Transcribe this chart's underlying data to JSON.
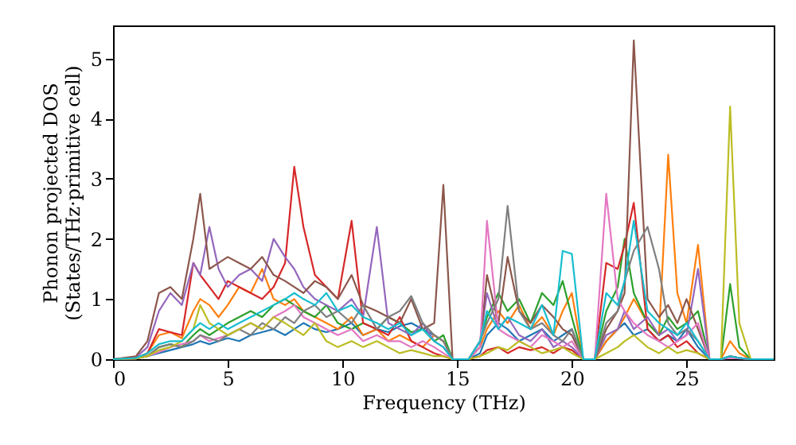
{
  "chart_data": {
    "type": "line",
    "xlabel": "Frequency (THz)",
    "ylabel": "Phonon projected DOS\n(States/THz·primitive cell)",
    "x": [
      0,
      1,
      1.5,
      2,
      2.5,
      3,
      3.5,
      3.8,
      4.2,
      4.6,
      5,
      5.5,
      6,
      6.5,
      7,
      7.5,
      7.9,
      8.3,
      8.8,
      9.3,
      9.8,
      10.4,
      10.9,
      11.5,
      12,
      12.5,
      13,
      13.5,
      14,
      14.4,
      14.8,
      15.5,
      16,
      16.3,
      16.8,
      17.2,
      17.7,
      18.2,
      18.7,
      19.2,
      19.6,
      20,
      20.5,
      21,
      21.5,
      22,
      22.3,
      22.7,
      23.3,
      23.8,
      24.2,
      24.6,
      25,
      25.5,
      26,
      26.5,
      26.9,
      27.3,
      27.8,
      28.8
    ],
    "series": [
      {
        "color": "#1f77b4",
        "values": [
          0,
          0.02,
          0.05,
          0.1,
          0.15,
          0.2,
          0.25,
          0.3,
          0.25,
          0.3,
          0.35,
          0.3,
          0.4,
          0.45,
          0.5,
          0.4,
          0.5,
          0.6,
          0.5,
          0.45,
          0.5,
          0.6,
          0.4,
          0.5,
          0.45,
          0.55,
          0.6,
          0.5,
          0.4,
          0.3,
          0,
          0,
          0.1,
          0.4,
          0.6,
          0.5,
          0.3,
          0.4,
          0.5,
          0.3,
          0.4,
          0.5,
          0,
          0,
          0.3,
          0.5,
          0.6,
          0.4,
          0.5,
          0.3,
          0.4,
          0.3,
          0.5,
          0.2,
          0,
          0,
          0.05,
          0.02,
          0,
          0
        ]
      },
      {
        "color": "#ff7f0e",
        "values": [
          0,
          0.02,
          0.1,
          0.4,
          0.45,
          0.35,
          0.8,
          1.0,
          0.9,
          0.7,
          0.9,
          1.2,
          1.1,
          1.5,
          1.0,
          0.9,
          1.0,
          0.8,
          0.7,
          0.6,
          0.5,
          0.7,
          0.4,
          0.5,
          0.3,
          0.4,
          0.3,
          0.2,
          0.4,
          0.3,
          0,
          0,
          0.2,
          0.5,
          0.8,
          0.6,
          0.9,
          0.5,
          0.7,
          0.4,
          0.8,
          1.1,
          0,
          0,
          0.3,
          0.5,
          0.7,
          1.0,
          0.6,
          0.4,
          3.4,
          1.1,
          0.6,
          1.9,
          0,
          0,
          0.3,
          0.1,
          0,
          0
        ]
      },
      {
        "color": "#2ca02c",
        "values": [
          0,
          0.01,
          0.05,
          0.2,
          0.25,
          0.2,
          0.4,
          0.5,
          0.4,
          0.5,
          0.6,
          0.7,
          0.8,
          0.7,
          0.9,
          1.0,
          0.9,
          0.8,
          0.7,
          0.9,
          0.6,
          0.5,
          0.6,
          0.5,
          0.7,
          0.6,
          0.45,
          0.5,
          0.3,
          0.4,
          0,
          0,
          0.3,
          0.7,
          1.1,
          0.8,
          1.0,
          0.6,
          1.1,
          0.9,
          1.3,
          0.7,
          0,
          0,
          0.8,
          1.2,
          2.0,
          1.1,
          0.6,
          0.4,
          0.7,
          0.5,
          0.6,
          0.8,
          0,
          0,
          1.25,
          0.2,
          0,
          0
        ]
      },
      {
        "color": "#d62728",
        "values": [
          0,
          0.01,
          0.1,
          0.5,
          0.45,
          0.4,
          1.6,
          1.4,
          1.2,
          1.0,
          1.3,
          1.2,
          1.1,
          1.0,
          1.2,
          1.6,
          3.2,
          2.2,
          1.4,
          1.2,
          1.0,
          2.3,
          0.6,
          0.5,
          0.4,
          0.7,
          0.3,
          0.2,
          0.1,
          0.05,
          0,
          0,
          0.05,
          0.15,
          0.2,
          0.1,
          0.2,
          0.15,
          0.2,
          0.1,
          0.2,
          0.15,
          0,
          0,
          1.6,
          1.5,
          1.9,
          2.6,
          0.5,
          0.3,
          0.4,
          0.2,
          0.3,
          0.1,
          0,
          null,
          null,
          null,
          null,
          null
        ]
      },
      {
        "color": "#9467bd",
        "values": [
          0,
          0.03,
          0.2,
          0.8,
          1.1,
          0.9,
          1.6,
          1.4,
          2.2,
          1.5,
          1.2,
          1.4,
          1.5,
          1.3,
          2.0,
          1.7,
          1.5,
          1.2,
          1.0,
          0.9,
          0.8,
          1.0,
          0.7,
          2.2,
          0.6,
          0.5,
          0.4,
          0.6,
          0.3,
          0.2,
          0,
          0,
          0.3,
          1.1,
          0.5,
          0.7,
          0.4,
          0.3,
          0.5,
          0.2,
          0.3,
          0.2,
          0,
          0,
          0.4,
          0.5,
          0.8,
          0.5,
          0.7,
          0.4,
          0.5,
          0.3,
          0.4,
          1.5,
          0,
          0,
          0.05,
          0.02,
          0,
          0
        ]
      },
      {
        "color": "#8c564b",
        "values": [
          0,
          0.05,
          0.3,
          1.1,
          1.2,
          1.0,
          2.0,
          2.75,
          1.5,
          1.6,
          1.7,
          1.6,
          1.5,
          1.7,
          1.4,
          1.3,
          1.2,
          1.1,
          1.3,
          1.2,
          1.0,
          1.4,
          0.9,
          0.8,
          0.7,
          0.6,
          1.0,
          0.5,
          0.6,
          2.9,
          0,
          0,
          0.2,
          1.4,
          0.6,
          1.7,
          0.8,
          0.6,
          0.9,
          0.7,
          0.5,
          0.4,
          0,
          0,
          0.5,
          0.8,
          1.1,
          5.3,
          1.0,
          0.7,
          0.9,
          0.6,
          1.0,
          0.5,
          0,
          0,
          0.05,
          0.02,
          0,
          0
        ]
      },
      {
        "color": "#e377c2",
        "values": [
          0,
          0.01,
          0.05,
          0.12,
          0.2,
          0.25,
          0.3,
          0.4,
          0.3,
          0.35,
          0.4,
          0.5,
          0.6,
          0.5,
          0.7,
          0.8,
          0.9,
          0.7,
          0.6,
          0.5,
          0.4,
          0.5,
          0.3,
          0.4,
          0.3,
          0.3,
          0.2,
          0.3,
          0.2,
          0.1,
          0,
          0,
          0.2,
          2.3,
          0.5,
          0.4,
          0.3,
          0.2,
          0.4,
          0.3,
          0.2,
          0.3,
          0,
          0,
          2.75,
          1.0,
          0.8,
          0.6,
          0.4,
          0.3,
          0.2,
          0.3,
          0.4,
          0.6,
          0,
          0,
          0.02,
          0.01,
          0,
          0
        ]
      },
      {
        "color": "#7f7f7f",
        "values": [
          0,
          0.01,
          0.05,
          0.2,
          0.25,
          0.2,
          0.3,
          0.4,
          0.35,
          0.3,
          0.4,
          0.5,
          0.4,
          0.6,
          0.5,
          0.7,
          0.6,
          0.8,
          0.9,
          0.7,
          0.8,
          0.6,
          0.9,
          0.5,
          0.7,
          0.8,
          1.05,
          0.6,
          0.4,
          0.3,
          0,
          0,
          0.3,
          0.6,
          1.0,
          2.55,
          0.8,
          0.5,
          0.6,
          0.4,
          0.3,
          0.5,
          0,
          0,
          0.6,
          0.8,
          1.3,
          1.8,
          2.2,
          1.5,
          0.6,
          0.4,
          0.5,
          0.3,
          0,
          0,
          0.05,
          0.02,
          0,
          0
        ]
      },
      {
        "color": "#bcbd22",
        "values": [
          0,
          0.01,
          0.05,
          0.15,
          0.2,
          0.3,
          0.5,
          0.9,
          0.6,
          0.5,
          0.4,
          0.5,
          0.6,
          0.5,
          0.7,
          0.6,
          0.5,
          0.4,
          0.6,
          0.3,
          0.2,
          0.3,
          0.2,
          0.3,
          0.2,
          0.1,
          0.15,
          0.1,
          0.05,
          0.05,
          0,
          0,
          0.05,
          0.1,
          0.2,
          0.15,
          0.3,
          0.2,
          0.1,
          0.15,
          0.2,
          0.1,
          0,
          0,
          0.1,
          0.2,
          0.3,
          0.4,
          0.2,
          0.1,
          0.2,
          0.1,
          0.15,
          0.1,
          0,
          0,
          4.2,
          0.6,
          0,
          0
        ]
      },
      {
        "color": "#17becf",
        "values": [
          0,
          0.02,
          0.1,
          0.25,
          0.3,
          0.3,
          0.5,
          0.6,
          0.5,
          0.6,
          0.5,
          0.6,
          0.7,
          0.8,
          0.9,
          1.0,
          1.1,
          1.0,
          0.9,
          1.1,
          0.8,
          0.9,
          0.7,
          0.6,
          0.5,
          0.6,
          0.4,
          0.5,
          0.3,
          0.2,
          0,
          0,
          0.3,
          0.8,
          0.5,
          0.7,
          0.6,
          0.5,
          0.9,
          0.4,
          1.8,
          1.75,
          0,
          0,
          1.1,
          0.9,
          1.3,
          2.3,
          0.8,
          0.6,
          0.5,
          0.4,
          0.6,
          0.3,
          0,
          0,
          0.05,
          0.02,
          0,
          0
        ]
      }
    ],
    "xlim": [
      0,
      28.8
    ],
    "ylim": [
      0,
      5.55
    ],
    "xticks": [
      0,
      5,
      10,
      15,
      20,
      25
    ],
    "yticks": [
      0,
      1,
      2,
      3,
      4,
      5
    ],
    "grid": false,
    "marker": "none",
    "line_style": "solid"
  }
}
